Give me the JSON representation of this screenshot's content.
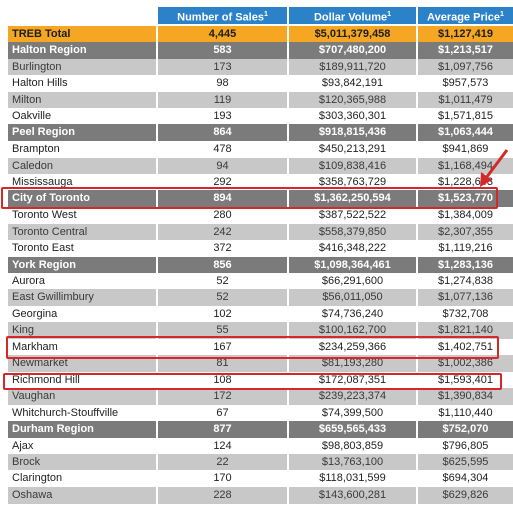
{
  "header": {
    "blank": "",
    "sales": "Number of Sales",
    "dollar": "Dollar Volume",
    "avg": "Average Price",
    "footnote": "1"
  },
  "rows": [
    {
      "name": "TREB Total",
      "sales": "4,445",
      "dollar": "$5,011,379,458",
      "avg": "$1,127,419",
      "style": "total"
    },
    {
      "name": "Halton Region",
      "sales": "583",
      "dollar": "$707,480,200",
      "avg": "$1,213,517",
      "style": "region"
    },
    {
      "name": "Burlington",
      "sales": "173",
      "dollar": "$189,911,720",
      "avg": "$1,097,756",
      "style": "grey"
    },
    {
      "name": "Halton Hills",
      "sales": "98",
      "dollar": "$93,842,191",
      "avg": "$957,573",
      "style": "white"
    },
    {
      "name": "Milton",
      "sales": "119",
      "dollar": "$120,365,988",
      "avg": "$1,011,479",
      "style": "grey"
    },
    {
      "name": "Oakville",
      "sales": "193",
      "dollar": "$303,360,301",
      "avg": "$1,571,815",
      "style": "white"
    },
    {
      "name": "Peel Region",
      "sales": "864",
      "dollar": "$918,815,436",
      "avg": "$1,063,444",
      "style": "region"
    },
    {
      "name": "Brampton",
      "sales": "478",
      "dollar": "$450,213,291",
      "avg": "$941,869",
      "style": "white"
    },
    {
      "name": "Caledon",
      "sales": "94",
      "dollar": "$109,838,416",
      "avg": "$1,168,494",
      "style": "grey"
    },
    {
      "name": "Mississauga",
      "sales": "292",
      "dollar": "$358,763,729",
      "avg": "$1,228,643",
      "style": "white"
    },
    {
      "name": "City of Toronto",
      "sales": "894",
      "dollar": "$1,362,250,594",
      "avg": "$1,523,770",
      "style": "region"
    },
    {
      "name": "Toronto West",
      "sales": "280",
      "dollar": "$387,522,522",
      "avg": "$1,384,009",
      "style": "white"
    },
    {
      "name": "Toronto Central",
      "sales": "242",
      "dollar": "$558,379,850",
      "avg": "$2,307,355",
      "style": "grey"
    },
    {
      "name": "Toronto East",
      "sales": "372",
      "dollar": "$416,348,222",
      "avg": "$1,119,216",
      "style": "white"
    },
    {
      "name": "York Region",
      "sales": "856",
      "dollar": "$1,098,364,461",
      "avg": "$1,283,136",
      "style": "region"
    },
    {
      "name": "Aurora",
      "sales": "52",
      "dollar": "$66,291,600",
      "avg": "$1,274,838",
      "style": "white"
    },
    {
      "name": "East Gwillimbury",
      "sales": "52",
      "dollar": "$56,011,050",
      "avg": "$1,077,136",
      "style": "grey"
    },
    {
      "name": "Georgina",
      "sales": "102",
      "dollar": "$74,736,240",
      "avg": "$732,708",
      "style": "white"
    },
    {
      "name": "King",
      "sales": "55",
      "dollar": "$100,162,700",
      "avg": "$1,821,140",
      "style": "grey"
    },
    {
      "name": "Markham",
      "sales": "167",
      "dollar": "$234,259,366",
      "avg": "$1,402,751",
      "style": "white"
    },
    {
      "name": "Newmarket",
      "sales": "81",
      "dollar": "$81,193,280",
      "avg": "$1,002,386",
      "style": "grey"
    },
    {
      "name": "Richmond Hill",
      "sales": "108",
      "dollar": "$172,087,351",
      "avg": "$1,593,401",
      "style": "white"
    },
    {
      "name": "Vaughan",
      "sales": "172",
      "dollar": "$239,223,374",
      "avg": "$1,390,834",
      "style": "grey"
    },
    {
      "name": "Whitchurch-Stouffville",
      "sales": "67",
      "dollar": "$74,399,500",
      "avg": "$1,110,440",
      "style": "white"
    },
    {
      "name": "Durham Region",
      "sales": "877",
      "dollar": "$659,565,433",
      "avg": "$752,070",
      "style": "region"
    },
    {
      "name": "Ajax",
      "sales": "124",
      "dollar": "$98,803,859",
      "avg": "$796,805",
      "style": "white"
    },
    {
      "name": "Brock",
      "sales": "22",
      "dollar": "$13,763,100",
      "avg": "$625,595",
      "style": "grey"
    },
    {
      "name": "Clarington",
      "sales": "170",
      "dollar": "$118,031,599",
      "avg": "$694,304",
      "style": "white"
    },
    {
      "name": "Oshawa",
      "sales": "228",
      "dollar": "$143,600,281",
      "avg": "$629,826",
      "style": "grey"
    }
  ],
  "annotations": {
    "highlight_color": "#d62828",
    "highlighted_rows": [
      "City of Toronto",
      "Markham",
      "Richmond Hill"
    ]
  },
  "colors": {
    "header_blue": "#2b82c9",
    "total_orange": "#f5a623",
    "region_grey": "#7b7b7b",
    "alt_row_grey": "#c8c8c8"
  }
}
